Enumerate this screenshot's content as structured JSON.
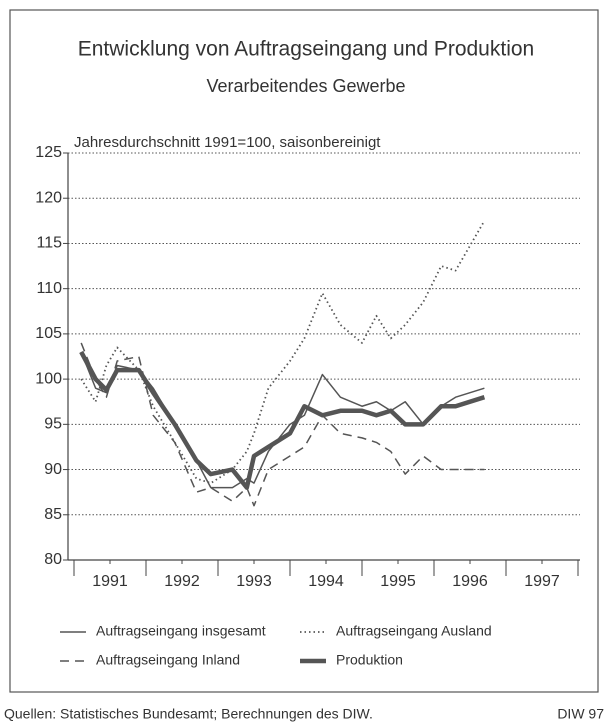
{
  "chart_data": {
    "type": "line",
    "title": "Entwicklung von Auftragseingang und Produktion",
    "subtitle": "Verarbeitendes Gewerbe",
    "y_label": "Jahresdurchschnitt 1991=100, saisonbereinigt",
    "source": "Quellen: Statistisches Bundesamt; Berechnungen des DIW.",
    "credit": "DIW 97",
    "x": [
      1991.1,
      1991.3,
      1991.45,
      1991.6,
      1991.9,
      1992.1,
      1992.4,
      1992.7,
      1992.9,
      1993.2,
      1993.4,
      1993.5,
      1993.7,
      1994.0,
      1994.2,
      1994.45,
      1994.7,
      1995.0,
      1995.2,
      1995.4,
      1995.6,
      1995.85,
      1996.1,
      1996.3,
      1996.7
    ],
    "xlim": [
      1991,
      1998
    ],
    "xticks": [
      {
        "value": 1991.5,
        "label": "1991"
      },
      {
        "value": 1992.5,
        "label": "1992"
      },
      {
        "value": 1993.5,
        "label": "1993"
      },
      {
        "value": 1994.5,
        "label": "1994"
      },
      {
        "value": 1995.5,
        "label": "1995"
      },
      {
        "value": 1996.5,
        "label": "1996"
      },
      {
        "value": 1997.5,
        "label": "1997"
      }
    ],
    "ylim": [
      80,
      125
    ],
    "yticks": [
      80,
      85,
      90,
      95,
      100,
      105,
      110,
      115,
      120,
      125
    ],
    "grid": true,
    "series": [
      {
        "name": "Auftragseingang insgesamt",
        "color": "#555555",
        "style": "solid",
        "width": 1.5,
        "values": [
          103,
          99,
          98.5,
          101.5,
          101,
          99,
          95,
          91,
          88,
          88,
          89,
          88.5,
          92,
          95,
          96,
          100.5,
          98,
          97,
          97.5,
          96.5,
          97.5,
          95,
          97,
          98,
          99
        ]
      },
      {
        "name": "Auftragseingang Ausland",
        "color": "#555555",
        "style": "dotted",
        "width": 1.8,
        "values": [
          100,
          97.5,
          101.5,
          103.5,
          101,
          97,
          93,
          89,
          88.5,
          90,
          92,
          94,
          99,
          102,
          104.5,
          109.5,
          106,
          104,
          107,
          104.5,
          106,
          108.5,
          112.5,
          112,
          117.5
        ]
      },
      {
        "name": "Auftragseingang Inland",
        "color": "#555555",
        "style": "dashed",
        "width": 1.5,
        "values": [
          104,
          100,
          98,
          102,
          102.5,
          96,
          93,
          87.5,
          88,
          86.5,
          88,
          86,
          90,
          91.5,
          92.5,
          96,
          94,
          93.5,
          93,
          92,
          89.5,
          91.5,
          90,
          90,
          90
        ]
      },
      {
        "name": "Produktion",
        "color": "#555555",
        "style": "solid",
        "width": 4.5,
        "values": [
          103,
          100,
          98.8,
          101,
          101,
          98.5,
          95,
          91,
          89.5,
          90,
          88,
          91.5,
          92.5,
          94,
          97,
          96,
          96.5,
          96.5,
          96,
          96.5,
          95,
          95,
          97,
          97,
          98
        ]
      }
    ]
  }
}
